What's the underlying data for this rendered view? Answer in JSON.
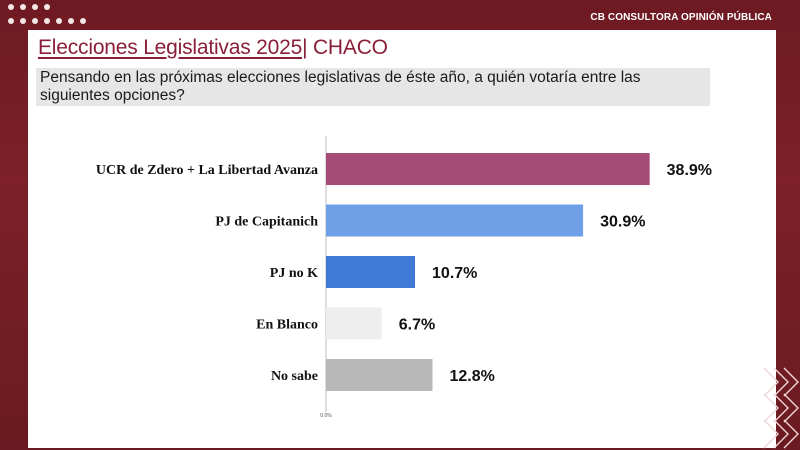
{
  "header": {
    "brand": "CB CONSULTORA OPINIÓN PÚBLICA"
  },
  "slide": {
    "title_main": "Elecciones Legislativas 2025|",
    "title_region": " CHACO",
    "question": "Pensando en las próximas elecciones legislativas de éste año, a quién votaría entre las siguientes opciones?"
  },
  "colors": {
    "background": "#7a1f27",
    "title": "#8a1f3a"
  },
  "chart_data": {
    "type": "bar",
    "orientation": "horizontal",
    "categories": [
      "UCR de Zdero + La Libertad Avanza",
      "PJ de Capitanich",
      "PJ no K",
      "En Blanco",
      "No sabe"
    ],
    "values": [
      38.9,
      30.9,
      10.7,
      6.7,
      12.8
    ],
    "value_labels": [
      "38.9%",
      "30.9%",
      "10.7%",
      "6.7%",
      "12.8%"
    ],
    "colors": [
      "#a44b76",
      "#6f9fe6",
      "#3f7ad6",
      "#eeeeee",
      "#b8b8b8"
    ],
    "axis_zero_label": "0.0%",
    "xlim": [
      0,
      40
    ],
    "grid": false
  }
}
